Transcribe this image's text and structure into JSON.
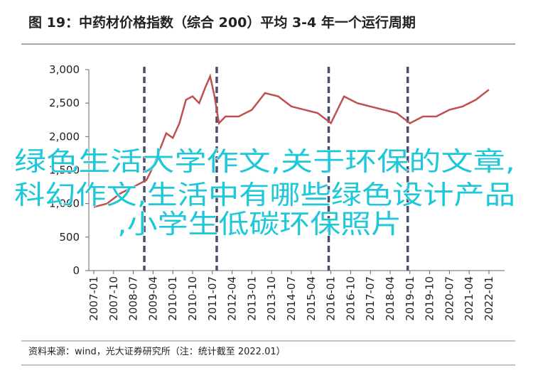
{
  "chart_data": {
    "type": "line",
    "title": "图 19：中药材价格指数（综合 200）平均 3-4 年一个运行周期",
    "source": "资料来源：wind，光大证券研究所（注：统计截至 2022.01）",
    "overlay_text": [
      "绿色生活大学作文,关于环保的文章,",
      "科幻作文,生活中有哪些绿色设计产品",
      ",小学生低碳环保照片"
    ],
    "x": [
      "2007-01",
      "2007-07",
      "2008-01",
      "2008-07",
      "2009-01",
      "2009-04",
      "2009-07",
      "2009-10",
      "2010-01",
      "2010-04",
      "2010-07",
      "2010-10",
      "2011-01",
      "2011-04",
      "2011-06",
      "2011-08",
      "2011-10",
      "2012-01",
      "2012-07",
      "2013-01",
      "2013-07",
      "2014-01",
      "2014-07",
      "2015-01",
      "2015-07",
      "2016-01",
      "2016-07",
      "2017-01",
      "2017-07",
      "2018-01",
      "2018-07",
      "2019-01",
      "2019-07",
      "2020-01",
      "2020-07",
      "2021-01",
      "2021-07",
      "2022-01"
    ],
    "values": [
      950,
      1000,
      1150,
      1250,
      1350,
      1550,
      1800,
      2050,
      1980,
      2200,
      2550,
      2600,
      2500,
      2750,
      2900,
      2600,
      2200,
      2300,
      2300,
      2400,
      2650,
      2600,
      2450,
      2400,
      2350,
      2200,
      2600,
      2500,
      2450,
      2400,
      2350,
      2200,
      2300,
      2300,
      2400,
      2450,
      2550,
      2700
    ],
    "color": "#c0504d",
    "xticks": [
      "2007-01",
      "2007-10",
      "2008-07",
      "2009-04",
      "2010-01",
      "2010-10",
      "2011-07",
      "2012-04",
      "2013-01",
      "2013-10",
      "2014-07",
      "2015-04",
      "2016-01",
      "2016-10",
      "2017-07",
      "2018-04",
      "2019-01",
      "2019-10",
      "2020-07",
      "2021-04",
      "2022-01"
    ],
    "markers": [
      "2008-12",
      "2011-09",
      "2015-12",
      "2018-12"
    ],
    "marker_color": "#4b4f6e",
    "ylim": [
      0,
      3000
    ],
    "yticks": [
      0,
      {
        "value": 500,
        "label": "500"
      },
      {
        "value": 1000,
        "label": "1,000"
      },
      {
        "value": 1500,
        "label": "1,500"
      },
      {
        "value": 2000,
        "label": "2,000"
      },
      {
        "value": 2500,
        "label": "2,500"
      },
      {
        "value": 3000,
        "label": "3,000"
      }
    ]
  }
}
